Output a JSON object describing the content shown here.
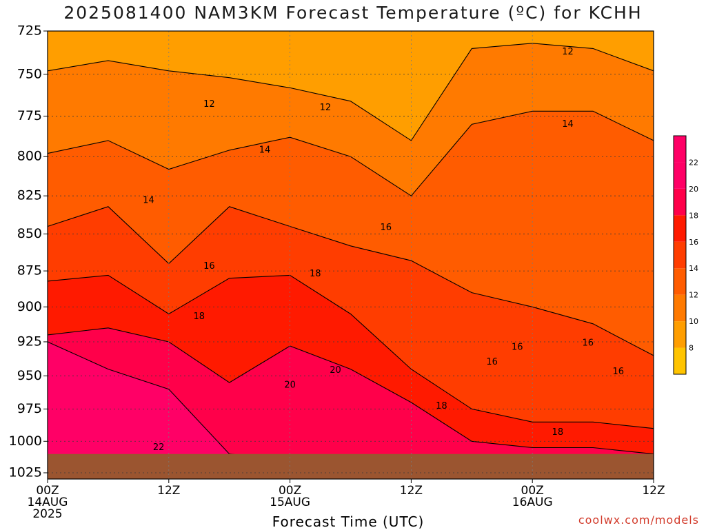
{
  "header": {
    "title": "2025081400 NAM3KM Forecast Temperature (ºC) for KCHH"
  },
  "footer": {
    "xlabel": "Forecast Time (UTC)",
    "credit": "coolwx.com/models"
  },
  "colors": {
    "band_8": "#ffc400",
    "band_10": "#ff9e00",
    "band_12": "#ff7a00",
    "band_14": "#ff5c00",
    "band_16": "#ff3d00",
    "band_18": "#ff1a00",
    "band_20": "#ff004a",
    "band_22": "#ff0066",
    "terrain": "#9b5530",
    "contour": "#000000",
    "credit": "#d23a2a"
  },
  "chart_data": {
    "type": "contour",
    "title": "2025081400 NAM3KM Forecast Temperature (ºC) for KCHH",
    "xlabel": "Forecast Time (UTC)",
    "ylabel": "",
    "x_ticks": [
      {
        "hour": 0,
        "lines": [
          "00Z",
          "14AUG",
          "2025"
        ]
      },
      {
        "hour": 12,
        "lines": [
          "12Z"
        ]
      },
      {
        "hour": 24,
        "lines": [
          "00Z",
          "15AUG"
        ]
      },
      {
        "hour": 36,
        "lines": [
          "12Z"
        ]
      },
      {
        "hour": 48,
        "lines": [
          "00Z",
          "16AUG"
        ]
      },
      {
        "hour": 60,
        "lines": [
          "12Z"
        ]
      }
    ],
    "xlim": [
      0,
      60
    ],
    "y_ticks": [
      725,
      750,
      775,
      800,
      825,
      850,
      875,
      900,
      925,
      950,
      975,
      1000,
      1025
    ],
    "ylim": [
      725,
      1030
    ],
    "y_scale": "log-pressure",
    "grid": true,
    "colorbar_levels": [
      8,
      10,
      12,
      14,
      16,
      18,
      20,
      22
    ],
    "times": [
      0,
      6,
      12,
      18,
      24,
      30,
      36,
      42,
      48,
      54,
      60
    ],
    "isotherms": [
      {
        "level": 12,
        "pressure": [
          748,
          742,
          748,
          752,
          758,
          766,
          790,
          735,
          732,
          735,
          748
        ]
      },
      {
        "level": 14,
        "pressure": [
          798,
          790,
          808,
          796,
          788,
          800,
          825,
          780,
          772,
          772,
          790
        ]
      },
      {
        "level": 16,
        "pressure": [
          845,
          832,
          870,
          832,
          845,
          858,
          868,
          890,
          900,
          912,
          935
        ]
      },
      {
        "level": 18,
        "pressure": [
          882,
          878,
          905,
          880,
          878,
          905,
          945,
          975,
          985,
          985,
          990
        ]
      },
      {
        "level": 20,
        "pressure": [
          920,
          915,
          925,
          955,
          928,
          945,
          970,
          1000,
          1005,
          1005,
          1010
        ]
      },
      {
        "level": 22,
        "pressure": [
          925,
          945,
          960,
          1010,
          1015,
          1018,
          1020,
          1025,
          1028,
          1028,
          1030
        ]
      }
    ],
    "contour_labels": [
      {
        "text": "12",
        "hour": 16.0,
        "pressure": 768
      },
      {
        "text": "12",
        "hour": 27.5,
        "pressure": 770
      },
      {
        "text": "12",
        "hour": 51.5,
        "pressure": 737
      },
      {
        "text": "14",
        "hour": 10.0,
        "pressure": 828
      },
      {
        "text": "14",
        "hour": 21.5,
        "pressure": 796
      },
      {
        "text": "14",
        "hour": 51.5,
        "pressure": 780
      },
      {
        "text": "16",
        "hour": 16.0,
        "pressure": 872
      },
      {
        "text": "16",
        "hour": 33.5,
        "pressure": 846
      },
      {
        "text": "16",
        "hour": 44.0,
        "pressure": 940
      },
      {
        "text": "16",
        "hour": 46.5,
        "pressure": 929
      },
      {
        "text": "16",
        "hour": 53.5,
        "pressure": 926
      },
      {
        "text": "16",
        "hour": 56.5,
        "pressure": 947
      },
      {
        "text": "18",
        "hour": 15.0,
        "pressure": 907
      },
      {
        "text": "18",
        "hour": 26.5,
        "pressure": 877
      },
      {
        "text": "18",
        "hour": 39.0,
        "pressure": 973
      },
      {
        "text": "18",
        "hour": 50.5,
        "pressure": 993
      },
      {
        "text": "20",
        "hour": 28.5,
        "pressure": 946
      },
      {
        "text": "20",
        "hour": 24.0,
        "pressure": 957
      },
      {
        "text": "22",
        "hour": 11.0,
        "pressure": 1005
      }
    ],
    "surface_pressure": 1010
  }
}
